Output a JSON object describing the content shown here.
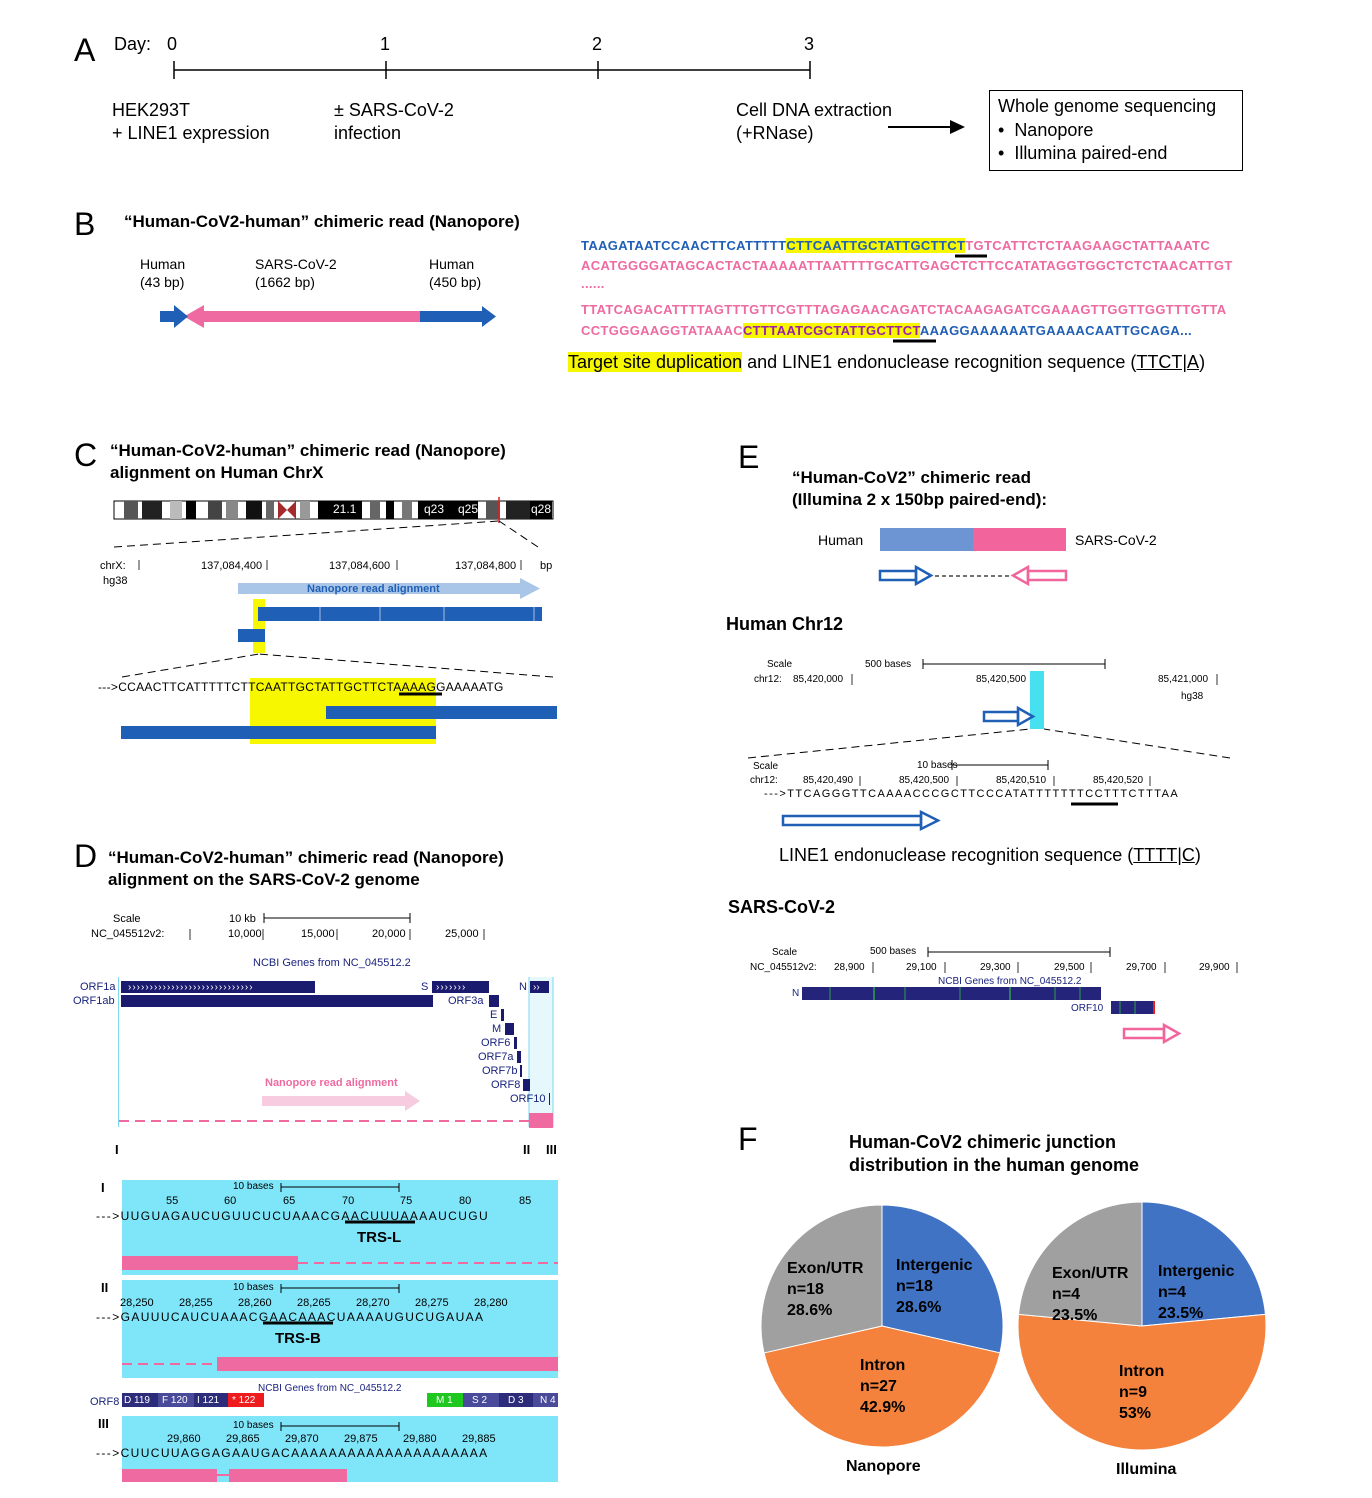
{
  "panelA": {
    "label": "A",
    "day_label": "Day:",
    "days": [
      "0",
      "1",
      "2",
      "3"
    ],
    "step1": [
      "HEK293T",
      "+ LINE1 expression"
    ],
    "step2": [
      "± SARS-CoV-2",
      "infection"
    ],
    "step3": [
      "Cell DNA extraction",
      "(+RNase)"
    ],
    "box_title": "Whole genome sequencing",
    "box_items": [
      "Nanopore",
      "Illumina paired-end"
    ]
  },
  "panelB": {
    "label": "B",
    "title": "“Human-CoV2-human” chimeric read (Nanopore)",
    "seg_human1": [
      "Human",
      "(43 bp)"
    ],
    "seg_cov": [
      "SARS-CoV-2",
      "(1662 bp)"
    ],
    "seg_human2": [
      "Human",
      "(450 bp)"
    ],
    "seq1_blue": "TAAGATAATCCAACTTCATTTTT",
    "seq1_tsd": "CTTCAATTGCTATTGCTTCT",
    "seq1_pink": "TGTCATTCTCTAAGAAGCTATTAAATC",
    "seq2": "ACATGGGGATAGCACTACTAAAAATTAATTTTGCATTGAGCTCTTCCATATAGGTGGCTCTCTAACATTGT",
    "dots": "......",
    "seq3": "TTATCAGACATTTTAGTTTGTTCGTTTAGAGAACAGATCTACAAGAGATCGAAAGTTGGTTGGTTTGTTA",
    "seq4_pink": "CCTGGGAAGGTATAAAC",
    "seq4_tsd": "CTTTAATCGCTATTGCTTCT",
    "seq4_blue": "AAAGGAAAAAATGAAAACAATTGCAGA...",
    "legend_tsd": "Target site duplication",
    "legend_rest": " and LINE1 endonuclease recognition sequence (",
    "legend_motif": "TTCT|A",
    "legend_close": ")"
  },
  "panelC": {
    "label": "C",
    "title": [
      "“Human-CoV2-human” chimeric read (Nanopore)",
      "alignment on Human ChrX"
    ],
    "ideo_labels": [
      "21.1",
      "q23",
      "q25",
      "q28"
    ],
    "chr_label": [
      "chrX:",
      "hg38"
    ],
    "positions": [
      "137,084,400",
      "137,084,600",
      "137,084,800",
      "bp"
    ],
    "track_label": "Nanopore read alignment",
    "sequence": "--->CCAACTTCATTTTTCTTCAATTGCTATTGCTTCTAAAAGGAAAAATG"
  },
  "panelD": {
    "label": "D",
    "title": [
      "“Human-CoV2-human” chimeric read (Nanopore)",
      "alignment on the SARS-CoV-2 genome"
    ],
    "scale": "Scale",
    "scale_len": "10 kb",
    "chrom": "NC_045512v2:",
    "positions": [
      "10,000",
      "15,000",
      "20,000",
      "25,000"
    ],
    "genes_title": "NCBI Genes from NC_045512.2",
    "genes": [
      "ORF1a",
      "ORF1ab",
      "S",
      "ORF3a",
      "E",
      "M",
      "ORF6",
      "ORF7a",
      "ORF7b",
      "ORF8",
      "ORF10",
      "N"
    ],
    "track_label": "Nanopore read alignment",
    "regions": [
      "I",
      "II",
      "III"
    ],
    "zoomI": {
      "label": "I",
      "scale": "10 bases",
      "ticks": [
        "55",
        "60",
        "65",
        "70",
        "75",
        "80",
        "85"
      ],
      "seq": "--->UUGUAGAUCUGUUCUCUAAACGAACUUUAAAAUCUGU",
      "trs": "TRS-L"
    },
    "zoomII": {
      "label": "II",
      "scale": "10 bases",
      "ticks": [
        "28,250",
        "28,255",
        "28,260",
        "28,265",
        "28,270",
        "28,275",
        "28,280"
      ],
      "seq": "--->GAUUUCAUCUAAACGAACAAACUAAAAUGUCUGAUAA",
      "trs": "TRS-B",
      "genes_title": "NCBI Genes from NC_045512.2",
      "orf8_label": "ORF8",
      "codons_left": [
        "D 119",
        "F 120",
        "I 121",
        "* 122"
      ],
      "n_label": "N",
      "codons_right": [
        "M 1",
        "S 2",
        "D 3",
        "N 4"
      ]
    },
    "zoomIII": {
      "label": "III",
      "scale": "10 bases",
      "ticks": [
        "29,860",
        "29,865",
        "29,870",
        "29,875",
        "29,880",
        "29,885"
      ],
      "seq": "--->CUUCUUAGGAGAAUGACAAAAAAAAAAAAAAAAAAAAA"
    }
  },
  "panelE": {
    "label": "E",
    "title": [
      "“Human-CoV2” chimeric read",
      "(Illumina 2 x 150bp paired-end):"
    ],
    "human": "Human",
    "cov": "SARS-CoV-2",
    "chr12_title": "Human Chr12",
    "chr12_scale": "Scale",
    "chr12_scale_len": "500 bases",
    "chr12_chrom": "chr12:",
    "chr12_positions": [
      "85,420,000",
      "85,420,500",
      "85,421,000"
    ],
    "hg38": "hg38",
    "zoom_scale": "Scale",
    "zoom_scale_len": "10 bases",
    "zoom_chrom": "chr12:",
    "zoom_positions": [
      "85,420,490",
      "85,420,500",
      "85,420,510",
      "85,420,520"
    ],
    "zoom_seq": "--->TTCAGGGTTCAAAACCCGCTTCCCATATTTTTTTCCTTTCTTTAA",
    "line1_text": "LINE1 endonuclease recognition sequence (",
    "line1_motif": "TTTT|C",
    "line1_close": ")",
    "cov_title": "SARS-CoV-2",
    "cov_scale": "Scale",
    "cov_scale_len": "500 bases",
    "cov_chrom": "NC_045512v2:",
    "cov_positions": [
      "28,900",
      "29,100",
      "29,300",
      "29,500",
      "29,700",
      "29,900"
    ],
    "cov_genes_title": "NCBI Genes from NC_045512.2",
    "cov_gene_n": "N",
    "cov_gene_orf10": "ORF10"
  },
  "panelF": {
    "label": "F",
    "title": [
      "Human-CoV2 chimeric junction",
      "distribution in the human genome"
    ],
    "colors": {
      "intergenic": "#4173c4",
      "intron": "#f5823c",
      "exon": "#a0a0a0"
    },
    "chart_data": [
      {
        "type": "pie",
        "title": "Nanopore",
        "categories": [
          "Intergenic",
          "Intron",
          "Exon/UTR"
        ],
        "counts": [
          "n=18",
          "n=27",
          "n=18"
        ],
        "percent_labels": [
          "28.6%",
          "42.9%",
          "28.6%"
        ],
        "values": [
          28.6,
          42.9,
          28.6
        ]
      },
      {
        "type": "pie",
        "title": "Illumina",
        "categories": [
          "Intergenic",
          "Intron",
          "Exon/UTR"
        ],
        "counts": [
          "n=4",
          "n=9",
          "n=4"
        ],
        "percent_labels": [
          "23.5%",
          "53%",
          "23.5%"
        ],
        "values": [
          23.5,
          53,
          23.5
        ]
      }
    ]
  }
}
